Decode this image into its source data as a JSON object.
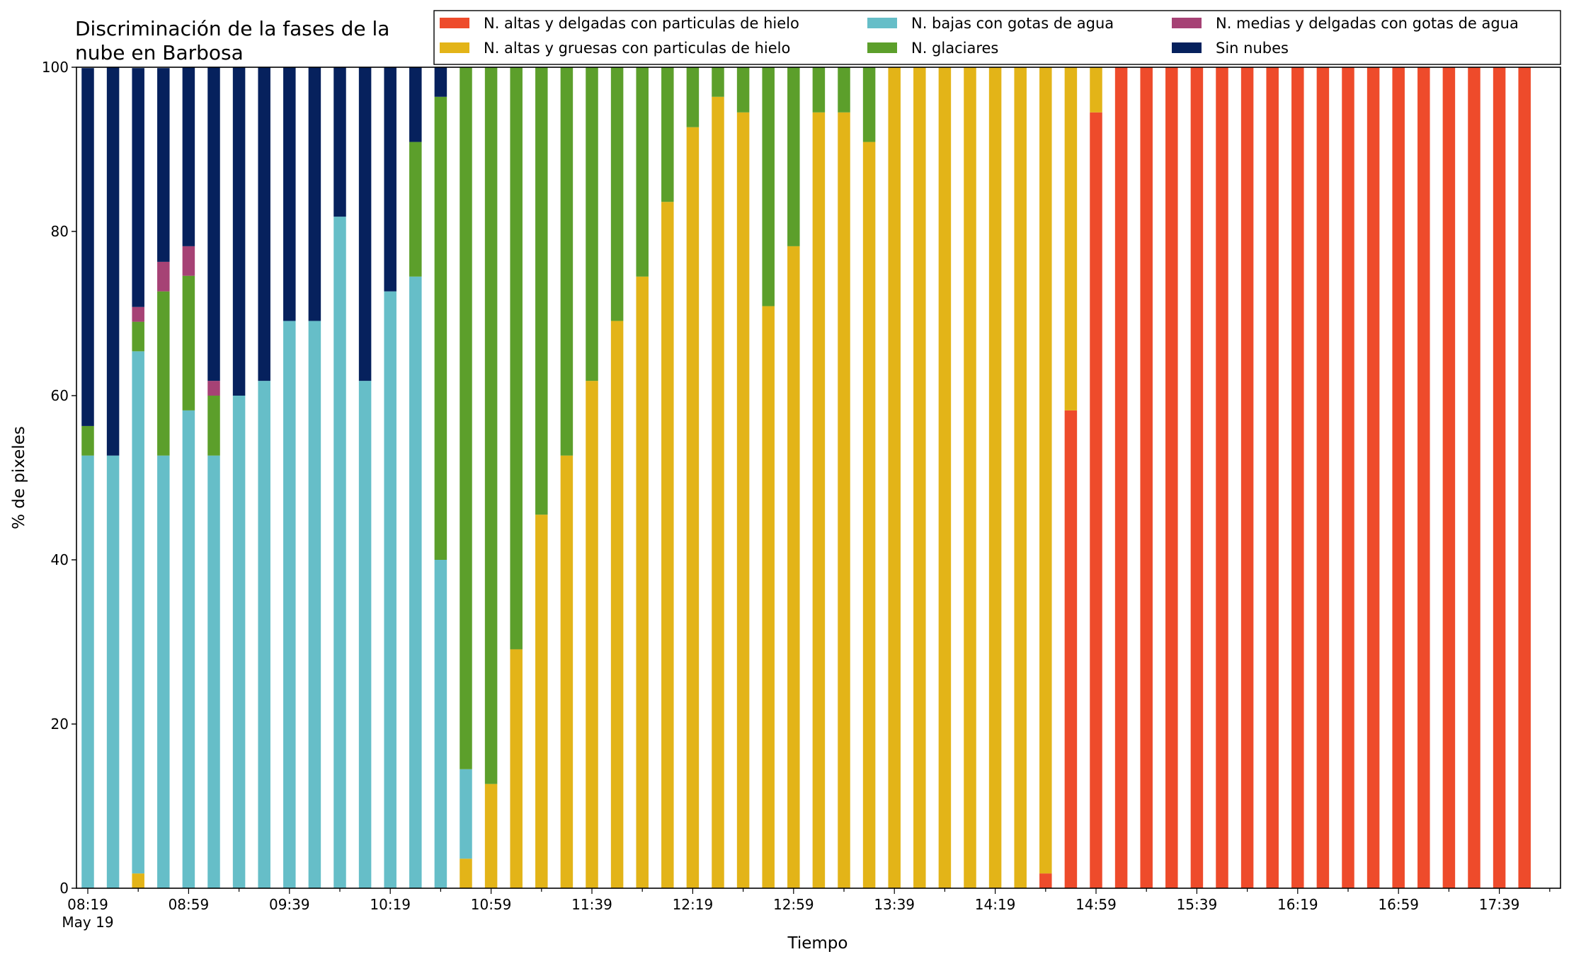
{
  "chart_data": {
    "type": "bar",
    "stacked": true,
    "title_lines": [
      "Discriminación de la fases de la",
      "nube en Barbosa"
    ],
    "xlabel": "Tiempo",
    "ylabel": "% de pixeles",
    "ylim": [
      0,
      100
    ],
    "yticks": [
      0,
      20,
      40,
      60,
      80,
      100
    ],
    "x_tick_labels": [
      {
        "index": 0,
        "label": "08:19",
        "sub": "May 19"
      },
      {
        "index": 4,
        "label": "08:59"
      },
      {
        "index": 8,
        "label": "09:39"
      },
      {
        "index": 12,
        "label": "10:19"
      },
      {
        "index": 16,
        "label": "10:59"
      },
      {
        "index": 20,
        "label": "11:39"
      },
      {
        "index": 24,
        "label": "12:19"
      },
      {
        "index": 28,
        "label": "12:59"
      },
      {
        "index": 32,
        "label": "13:39"
      },
      {
        "index": 36,
        "label": "14:19"
      },
      {
        "index": 40,
        "label": "14:59"
      },
      {
        "index": 44,
        "label": "15:39"
      },
      {
        "index": 48,
        "label": "16:19"
      },
      {
        "index": 52,
        "label": "16:59"
      },
      {
        "index": 56,
        "label": "17:39"
      }
    ],
    "grid": false,
    "legend_position": "top-right",
    "legend_entries": [
      "N. altas y delgadas con particulas de hielo",
      "N. altas y gruesas con particulas de hielo",
      "N. bajas con gotas de agua",
      "N. glaciares",
      "N. medias y delgadas con gotas de agua",
      "Sin nubes"
    ],
    "stack_order": [
      0,
      1,
      2,
      3,
      4,
      5
    ],
    "series": [
      {
        "name": "N. altas y delgadas con particulas de hielo",
        "color": "#ee4b2b",
        "values": [
          0,
          0,
          0,
          0,
          0,
          0,
          0,
          0,
          0,
          0,
          0,
          0,
          0,
          0,
          0,
          0,
          0,
          0,
          0,
          0,
          0,
          0,
          0,
          0,
          0,
          0,
          0,
          0,
          0,
          0,
          0,
          0,
          0,
          0,
          0,
          0,
          0,
          0,
          1.8,
          58.2,
          94.5,
          100,
          100,
          100,
          100,
          100,
          100,
          100,
          100,
          100,
          100,
          100,
          100,
          100,
          100,
          100,
          100,
          100
        ]
      },
      {
        "name": "N. altas y gruesas con particulas de hielo",
        "color": "#e3b418",
        "values": [
          0,
          0,
          1.8,
          0,
          0,
          0,
          0,
          0,
          0,
          0,
          0,
          0,
          0,
          0,
          0,
          3.6,
          12.7,
          29.1,
          45.5,
          52.7,
          61.8,
          69.1,
          74.5,
          83.6,
          92.7,
          96.4,
          94.5,
          70.9,
          78.2,
          94.5,
          94.5,
          90.9,
          100,
          100,
          100,
          100,
          100,
          100,
          98.2,
          41.8,
          5.5,
          0,
          0,
          0,
          0,
          0,
          0,
          0,
          0,
          0,
          0,
          0,
          0,
          0,
          0,
          0,
          0,
          0
        ]
      },
      {
        "name": "N. bajas con gotas de agua",
        "color": "#66bec8",
        "values": [
          52.7,
          52.7,
          63.6,
          52.7,
          58.2,
          52.7,
          60.0,
          61.8,
          69.1,
          69.1,
          81.8,
          61.8,
          72.7,
          74.5,
          40.0,
          10.9,
          0,
          0,
          0,
          0,
          0,
          0,
          0,
          0,
          0,
          0,
          0,
          0,
          0,
          0,
          0,
          0,
          0,
          0,
          0,
          0,
          0,
          0,
          0,
          0,
          0,
          0,
          0,
          0,
          0,
          0,
          0,
          0,
          0,
          0,
          0,
          0,
          0,
          0,
          0,
          0,
          0,
          0
        ]
      },
      {
        "name": "N. glaciares",
        "color": "#5c9f2b",
        "values": [
          3.6,
          0,
          3.6,
          20.0,
          16.4,
          7.3,
          0,
          0,
          0,
          0,
          0,
          0,
          0,
          16.4,
          56.4,
          85.5,
          87.3,
          70.9,
          54.5,
          47.3,
          38.2,
          30.9,
          25.5,
          16.4,
          7.3,
          3.6,
          5.5,
          29.1,
          21.8,
          5.5,
          5.5,
          9.1,
          0,
          0,
          0,
          0,
          0,
          0,
          0,
          0,
          0,
          0,
          0,
          0,
          0,
          0,
          0,
          0,
          0,
          0,
          0,
          0,
          0,
          0,
          0,
          0,
          0,
          0
        ]
      },
      {
        "name": "N. medias y delgadas con gotas de agua",
        "color": "#a64275",
        "values": [
          0,
          0,
          1.8,
          3.6,
          3.6,
          1.8,
          0,
          0,
          0,
          0,
          0,
          0,
          0,
          0,
          0,
          0,
          0,
          0,
          0,
          0,
          0,
          0,
          0,
          0,
          0,
          0,
          0,
          0,
          0,
          0,
          0,
          0,
          0,
          0,
          0,
          0,
          0,
          0,
          0,
          0,
          0,
          0,
          0,
          0,
          0,
          0,
          0,
          0,
          0,
          0,
          0,
          0,
          0,
          0,
          0,
          0,
          0,
          0
        ]
      },
      {
        "name": "Sin nubes",
        "color": "#06215d",
        "values": [
          43.6,
          47.3,
          29.1,
          23.6,
          21.8,
          38.2,
          40.0,
          38.2,
          30.9,
          30.9,
          18.2,
          38.2,
          27.3,
          9.1,
          3.6,
          0,
          0,
          0,
          0,
          0,
          0,
          0,
          0,
          0,
          0,
          0,
          0,
          0,
          0,
          0,
          0,
          0,
          0,
          0,
          0,
          0,
          0,
          0,
          0,
          0,
          0,
          0,
          0,
          0,
          0,
          0,
          0,
          0,
          0,
          0,
          0,
          0,
          0,
          0,
          0,
          0,
          0,
          0
        ]
      }
    ]
  }
}
